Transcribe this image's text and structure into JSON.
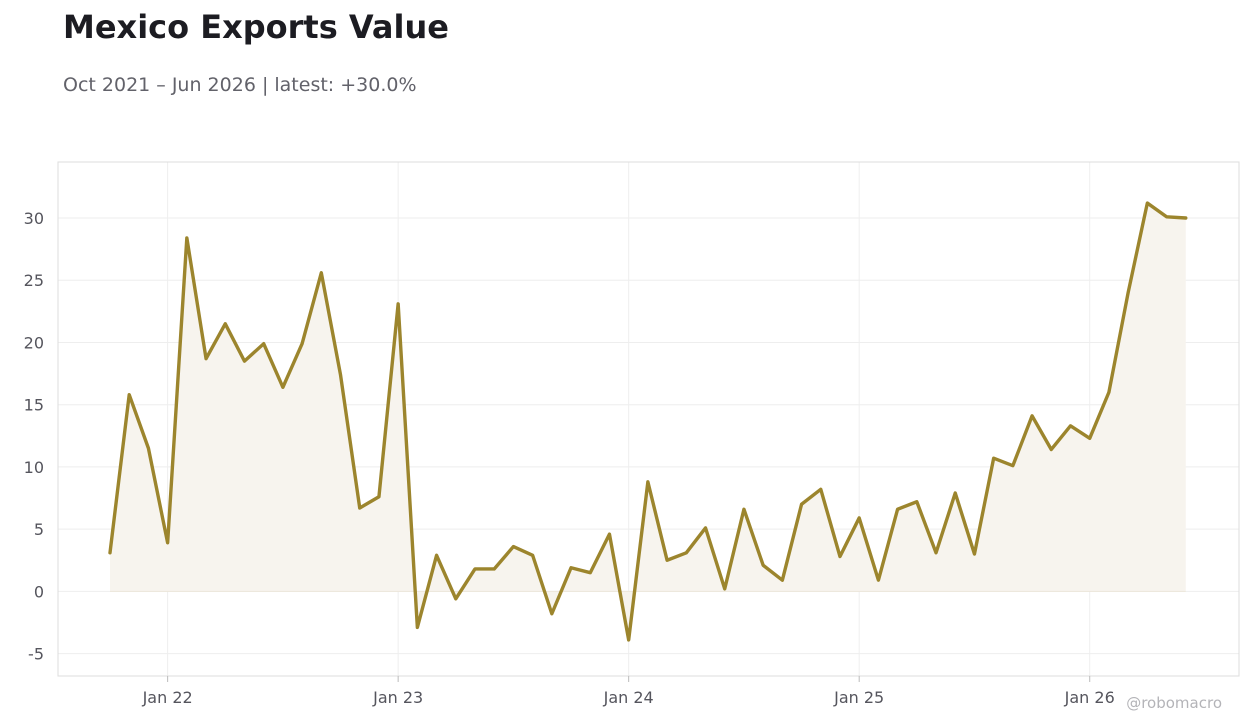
{
  "header": {
    "title": "Mexico Exports Value",
    "subtitle": "Oct 2021 – Jun 2026 | latest: +30.0%"
  },
  "watermark": "@robomacro",
  "colors": {
    "line": "#9c852d",
    "fill": "#f7f4ee",
    "grid": "#eeeeee",
    "frame": "#dddddd"
  },
  "chart_data": {
    "type": "area",
    "title": "Mexico Exports Value",
    "xlabel": "",
    "ylabel": "",
    "grid": true,
    "x_start": "2021-10",
    "frequency": "monthly",
    "ylim": [
      -6.8,
      34.5
    ],
    "yticks": [
      -5,
      0,
      5,
      10,
      15,
      20,
      25,
      30
    ],
    "xticks": [
      {
        "label": "Jan 22",
        "date": "2022-01"
      },
      {
        "label": "Jan 23",
        "date": "2023-01"
      },
      {
        "label": "Jan 24",
        "date": "2024-01"
      },
      {
        "label": "Jan 25",
        "date": "2025-01"
      },
      {
        "label": "Jan 26",
        "date": "2026-01"
      }
    ],
    "series": [
      {
        "values": [
          3.1,
          15.8,
          11.5,
          3.9,
          28.4,
          18.7,
          21.5,
          18.5,
          19.9,
          16.4,
          19.9,
          25.6,
          17.4,
          6.7,
          7.6,
          23.1,
          -2.9,
          2.9,
          -0.6,
          1.8,
          1.8,
          3.6,
          2.9,
          -1.8,
          1.9,
          1.5,
          4.6,
          -3.9,
          8.8,
          2.5,
          3.1,
          5.1,
          0.2,
          6.6,
          2.1,
          0.9,
          7.0,
          8.2,
          2.8,
          5.9,
          0.9,
          6.6,
          7.2,
          3.1,
          7.9,
          3.0,
          10.7,
          10.1,
          14.1,
          11.4,
          13.3,
          12.3,
          16.0,
          24.0,
          31.2,
          30.1,
          30.0
        ]
      }
    ]
  }
}
